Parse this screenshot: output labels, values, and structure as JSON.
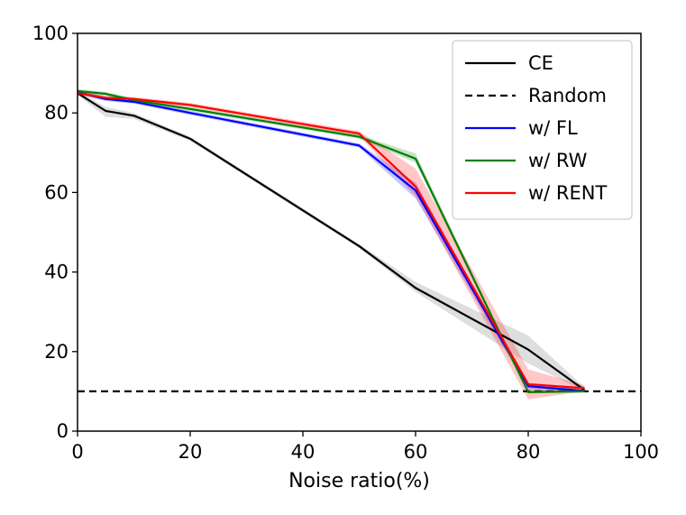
{
  "chart_data": {
    "type": "line",
    "title": "",
    "xlabel": "Noise ratio(%)",
    "ylabel": "",
    "xlim": [
      0,
      100
    ],
    "ylim": [
      0,
      100
    ],
    "xticks": [
      0,
      20,
      40,
      60,
      80,
      100
    ],
    "yticks": [
      0,
      20,
      40,
      60,
      80,
      100
    ],
    "grid": false,
    "legend_position": "top-right",
    "series": [
      {
        "name": "CE",
        "color": "#000000",
        "dash": "solid",
        "x": [
          0,
          5,
          10,
          20,
          50,
          60,
          80,
          90
        ],
        "y": [
          85,
          80.5,
          79.3,
          73.5,
          46.5,
          36.0,
          20.5,
          10.3
        ],
        "band_lower": [
          84.5,
          79.0,
          78.5,
          73.0,
          46.0,
          35.0,
          17.0,
          10.0
        ],
        "band_upper": [
          85.5,
          81.5,
          80.0,
          74.0,
          47.0,
          37.5,
          24.0,
          11.0
        ]
      },
      {
        "name": "Random",
        "color": "#000000",
        "dash": "dashed",
        "x": [
          0,
          100
        ],
        "y": [
          10,
          10
        ]
      },
      {
        "name": "w/ FL",
        "color": "#0000ff",
        "dash": "solid",
        "x": [
          0,
          5,
          10,
          20,
          50,
          60,
          80,
          90
        ],
        "y": [
          85.2,
          83.5,
          82.8,
          80.0,
          71.8,
          60.5,
          11.3,
          10.1
        ],
        "band_lower": [
          84.7,
          83.0,
          82.3,
          79.5,
          71.3,
          58.5,
          10.5,
          9.8
        ],
        "band_upper": [
          85.7,
          84.0,
          83.3,
          80.5,
          72.3,
          62.5,
          12.0,
          10.5
        ]
      },
      {
        "name": "w/ RW",
        "color": "#008000",
        "dash": "solid",
        "x": [
          0,
          5,
          10,
          20,
          50,
          60,
          80,
          90
        ],
        "y": [
          85.5,
          84.8,
          83.2,
          81.0,
          74.0,
          68.5,
          9.8,
          10.0
        ],
        "band_lower": [
          85.0,
          84.3,
          82.7,
          80.5,
          73.5,
          67.5,
          9.5,
          9.7
        ],
        "band_upper": [
          86.0,
          85.3,
          83.7,
          81.5,
          74.5,
          69.8,
          10.3,
          10.3
        ]
      },
      {
        "name": "w/ RENT",
        "color": "#ff0000",
        "dash": "solid",
        "x": [
          0,
          5,
          10,
          20,
          50,
          60,
          80,
          90
        ],
        "y": [
          85.0,
          83.8,
          83.5,
          82.0,
          74.8,
          61.5,
          11.8,
          10.8
        ],
        "band_lower": [
          84.5,
          83.3,
          83.0,
          81.5,
          74.2,
          59.0,
          8.0,
          10.0
        ],
        "band_upper": [
          85.5,
          84.3,
          84.0,
          82.5,
          75.4,
          66.0,
          15.5,
          11.5
        ]
      }
    ]
  }
}
